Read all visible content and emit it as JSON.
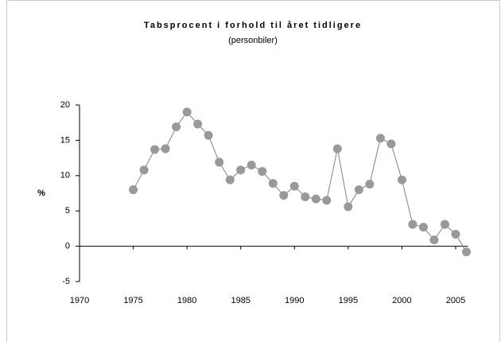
{
  "chart_data": {
    "type": "line",
    "title": "Tabsprocent i forhold til året tidligere",
    "subtitle": "(personbiler)",
    "y_label": "%",
    "x": [
      1975,
      1976,
      1977,
      1978,
      1979,
      1980,
      1981,
      1982,
      1983,
      1984,
      1985,
      1986,
      1987,
      1988,
      1989,
      1990,
      1991,
      1992,
      1993,
      1994,
      1995,
      1996,
      1997,
      1998,
      1999,
      2000,
      2001,
      2002,
      2003,
      2004,
      2005,
      2006
    ],
    "series": [
      {
        "name": "Tabsprocent",
        "color": "#999999",
        "values": [
          8.0,
          10.8,
          13.7,
          13.8,
          16.9,
          19.0,
          17.3,
          15.7,
          11.9,
          9.4,
          10.8,
          11.5,
          10.6,
          8.9,
          7.2,
          8.5,
          7.0,
          6.7,
          6.5,
          13.8,
          5.6,
          8.0,
          8.8,
          15.3,
          14.5,
          9.4,
          3.1,
          2.7,
          0.9,
          3.1,
          1.7,
          -0.8
        ]
      }
    ],
    "xlim": [
      1970,
      2007
    ],
    "xticks": [
      1970,
      1975,
      1980,
      1985,
      1990,
      1995,
      2000,
      2005
    ],
    "ylim": [
      -5,
      20
    ],
    "yticks": [
      -5,
      0,
      5,
      10,
      15,
      20
    ]
  }
}
